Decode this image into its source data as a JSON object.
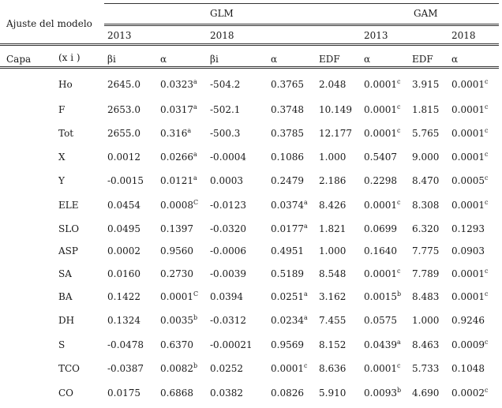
{
  "header": {
    "model_fit": "Ajuste del modelo",
    "glm": "GLM",
    "gam": "GAM",
    "years": [
      "2013",
      "2018",
      "2013",
      "2018"
    ],
    "layer": "Capa",
    "xi": "(x i )",
    "cols": [
      "βi",
      "α",
      "βi",
      "α",
      "EDF",
      "α",
      "EDF",
      "α"
    ]
  },
  "rows": [
    {
      "name": "Ho",
      "cells": [
        {
          "v": "2645.0"
        },
        {
          "v": "0.0323",
          "s": "a"
        },
        {
          "v": "-504.2"
        },
        {
          "v": "0.3765"
        },
        {
          "v": "2.048"
        },
        {
          "v": "0.0001",
          "s": "c"
        },
        {
          "v": "3.915"
        },
        {
          "v": "0.0001",
          "s": "c"
        }
      ]
    },
    {
      "name": "F",
      "cells": [
        {
          "v": "2653.0"
        },
        {
          "v": "0.0317",
          "s": "a"
        },
        {
          "v": "-502.1"
        },
        {
          "v": "0.3748"
        },
        {
          "v": "10.149"
        },
        {
          "v": "0.0001",
          "s": "c"
        },
        {
          "v": "1.815"
        },
        {
          "v": "0.0001",
          "s": "c"
        }
      ]
    },
    {
      "name": "Tot",
      "cells": [
        {
          "v": "2655.0"
        },
        {
          "v": "0.316",
          "s": "a"
        },
        {
          "v": "-500.3"
        },
        {
          "v": "0.3785"
        },
        {
          "v": "12.177"
        },
        {
          "v": "0.0001",
          "s": "c"
        },
        {
          "v": "5.765"
        },
        {
          "v": "0.0001",
          "s": "c"
        }
      ]
    },
    {
      "name": "X",
      "cells": [
        {
          "v": "0.0012"
        },
        {
          "v": "0.0266",
          "s": "a"
        },
        {
          "v": "-0.0004"
        },
        {
          "v": "0.1086"
        },
        {
          "v": "1.000"
        },
        {
          "v": "0.5407"
        },
        {
          "v": "9.000"
        },
        {
          "v": "0.0001",
          "s": "c"
        }
      ]
    },
    {
      "name": "Y",
      "cells": [
        {
          "v": "-0.0015"
        },
        {
          "v": "0.0121",
          "s": "a"
        },
        {
          "v": "0.0003"
        },
        {
          "v": "0.2479"
        },
        {
          "v": "2.186"
        },
        {
          "v": "0.2298"
        },
        {
          "v": "8.470"
        },
        {
          "v": "0.0005",
          "s": "c"
        }
      ]
    },
    {
      "name": "ELE",
      "cells": [
        {
          "v": "0.0454"
        },
        {
          "v": "0.0008",
          "s": "C"
        },
        {
          "v": "-0.0123"
        },
        {
          "v": "0.0374",
          "s": "a"
        },
        {
          "v": "8.426"
        },
        {
          "v": "0.0001",
          "s": "c"
        },
        {
          "v": "8.308"
        },
        {
          "v": "0.0001",
          "s": "c"
        }
      ]
    },
    {
      "name": "SLO",
      "cells": [
        {
          "v": "0.0495"
        },
        {
          "v": "0.1397"
        },
        {
          "v": "-0.0320"
        },
        {
          "v": "0.0177",
          "s": "a"
        },
        {
          "v": "1.821"
        },
        {
          "v": "0.0699"
        },
        {
          "v": "6.320"
        },
        {
          "v": "0.1293"
        }
      ]
    },
    {
      "name": "ASP",
      "cells": [
        {
          "v": "0.0002"
        },
        {
          "v": "0.9560"
        },
        {
          "v": "-0.0006"
        },
        {
          "v": "0.4951"
        },
        {
          "v": "1.000"
        },
        {
          "v": "0.1640"
        },
        {
          "v": "7.775"
        },
        {
          "v": "0.0903"
        }
      ]
    },
    {
      "name": "SA",
      "cells": [
        {
          "v": "0.0160"
        },
        {
          "v": "0.2730"
        },
        {
          "v": "-0.0039"
        },
        {
          "v": "0.5189"
        },
        {
          "v": "8.548"
        },
        {
          "v": "0.0001",
          "s": "c"
        },
        {
          "v": "7.789"
        },
        {
          "v": "0.0001",
          "s": "c"
        }
      ]
    },
    {
      "name": "BA",
      "cells": [
        {
          "v": "0.1422"
        },
        {
          "v": "0.0001",
          "s": "C"
        },
        {
          "v": "0.0394"
        },
        {
          "v": "0.0251",
          "s": "a"
        },
        {
          "v": "3.162"
        },
        {
          "v": "0.0015",
          "s": "b"
        },
        {
          "v": "8.483"
        },
        {
          "v": "0.0001",
          "s": "c"
        }
      ]
    },
    {
      "name": "DH",
      "cells": [
        {
          "v": "0.1324"
        },
        {
          "v": "0.0035",
          "s": "b"
        },
        {
          "v": "-0.0312"
        },
        {
          "v": "0.0234",
          "s": "a"
        },
        {
          "v": "7.455"
        },
        {
          "v": "0.0575"
        },
        {
          "v": "1.000"
        },
        {
          "v": "0.9246"
        }
      ]
    },
    {
      "name": "S",
      "cells": [
        {
          "v": "-0.0478"
        },
        {
          "v": "0.6370"
        },
        {
          "v": "-0.00021"
        },
        {
          "v": "0.9569"
        },
        {
          "v": "8.152"
        },
        {
          "v": "0.0439",
          "s": "a"
        },
        {
          "v": "8.463"
        },
        {
          "v": "0.0009",
          "s": "c"
        }
      ]
    },
    {
      "name": "TCO",
      "cells": [
        {
          "v": "-0.0387"
        },
        {
          "v": "0.0082",
          "s": "b"
        },
        {
          "v": "0.0252"
        },
        {
          "v": "0.0001",
          "s": "c"
        },
        {
          "v": "8.636"
        },
        {
          "v": "0.0001",
          "s": "c"
        },
        {
          "v": "5.733"
        },
        {
          "v": "0.1048"
        }
      ]
    },
    {
      "name": "CO",
      "cells": [
        {
          "v": "0.0175"
        },
        {
          "v": "0.6868"
        },
        {
          "v": "0.0382"
        },
        {
          "v": "0.0826"
        },
        {
          "v": "5.910"
        },
        {
          "v": "0.0093",
          "s": "b"
        },
        {
          "v": "4.690"
        },
        {
          "v": "0.0002",
          "s": "c"
        }
      ]
    }
  ]
}
